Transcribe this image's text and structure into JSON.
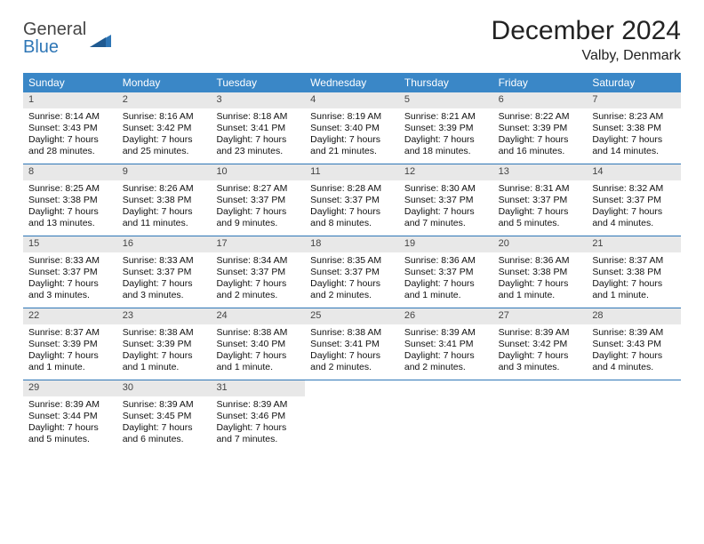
{
  "logo": {
    "word1": "General",
    "word2": "Blue"
  },
  "header": {
    "title": "December 2024",
    "location": "Valby, Denmark"
  },
  "colors": {
    "header_bg": "#3a87c7",
    "header_text": "#ffffff",
    "daynum_bg": "#e8e8e8",
    "daynum_text": "#444444",
    "rule": "#2e76b6",
    "logo_gray": "#444444",
    "logo_blue": "#2e76b6"
  },
  "daysOfWeek": [
    "Sunday",
    "Monday",
    "Tuesday",
    "Wednesday",
    "Thursday",
    "Friday",
    "Saturday"
  ],
  "weeks": [
    [
      {
        "n": "1",
        "sunrise": "Sunrise: 8:14 AM",
        "sunset": "Sunset: 3:43 PM",
        "day1": "Daylight: 7 hours",
        "day2": "and 28 minutes."
      },
      {
        "n": "2",
        "sunrise": "Sunrise: 8:16 AM",
        "sunset": "Sunset: 3:42 PM",
        "day1": "Daylight: 7 hours",
        "day2": "and 25 minutes."
      },
      {
        "n": "3",
        "sunrise": "Sunrise: 8:18 AM",
        "sunset": "Sunset: 3:41 PM",
        "day1": "Daylight: 7 hours",
        "day2": "and 23 minutes."
      },
      {
        "n": "4",
        "sunrise": "Sunrise: 8:19 AM",
        "sunset": "Sunset: 3:40 PM",
        "day1": "Daylight: 7 hours",
        "day2": "and 21 minutes."
      },
      {
        "n": "5",
        "sunrise": "Sunrise: 8:21 AM",
        "sunset": "Sunset: 3:39 PM",
        "day1": "Daylight: 7 hours",
        "day2": "and 18 minutes."
      },
      {
        "n": "6",
        "sunrise": "Sunrise: 8:22 AM",
        "sunset": "Sunset: 3:39 PM",
        "day1": "Daylight: 7 hours",
        "day2": "and 16 minutes."
      },
      {
        "n": "7",
        "sunrise": "Sunrise: 8:23 AM",
        "sunset": "Sunset: 3:38 PM",
        "day1": "Daylight: 7 hours",
        "day2": "and 14 minutes."
      }
    ],
    [
      {
        "n": "8",
        "sunrise": "Sunrise: 8:25 AM",
        "sunset": "Sunset: 3:38 PM",
        "day1": "Daylight: 7 hours",
        "day2": "and 13 minutes."
      },
      {
        "n": "9",
        "sunrise": "Sunrise: 8:26 AM",
        "sunset": "Sunset: 3:38 PM",
        "day1": "Daylight: 7 hours",
        "day2": "and 11 minutes."
      },
      {
        "n": "10",
        "sunrise": "Sunrise: 8:27 AM",
        "sunset": "Sunset: 3:37 PM",
        "day1": "Daylight: 7 hours",
        "day2": "and 9 minutes."
      },
      {
        "n": "11",
        "sunrise": "Sunrise: 8:28 AM",
        "sunset": "Sunset: 3:37 PM",
        "day1": "Daylight: 7 hours",
        "day2": "and 8 minutes."
      },
      {
        "n": "12",
        "sunrise": "Sunrise: 8:30 AM",
        "sunset": "Sunset: 3:37 PM",
        "day1": "Daylight: 7 hours",
        "day2": "and 7 minutes."
      },
      {
        "n": "13",
        "sunrise": "Sunrise: 8:31 AM",
        "sunset": "Sunset: 3:37 PM",
        "day1": "Daylight: 7 hours",
        "day2": "and 5 minutes."
      },
      {
        "n": "14",
        "sunrise": "Sunrise: 8:32 AM",
        "sunset": "Sunset: 3:37 PM",
        "day1": "Daylight: 7 hours",
        "day2": "and 4 minutes."
      }
    ],
    [
      {
        "n": "15",
        "sunrise": "Sunrise: 8:33 AM",
        "sunset": "Sunset: 3:37 PM",
        "day1": "Daylight: 7 hours",
        "day2": "and 3 minutes."
      },
      {
        "n": "16",
        "sunrise": "Sunrise: 8:33 AM",
        "sunset": "Sunset: 3:37 PM",
        "day1": "Daylight: 7 hours",
        "day2": "and 3 minutes."
      },
      {
        "n": "17",
        "sunrise": "Sunrise: 8:34 AM",
        "sunset": "Sunset: 3:37 PM",
        "day1": "Daylight: 7 hours",
        "day2": "and 2 minutes."
      },
      {
        "n": "18",
        "sunrise": "Sunrise: 8:35 AM",
        "sunset": "Sunset: 3:37 PM",
        "day1": "Daylight: 7 hours",
        "day2": "and 2 minutes."
      },
      {
        "n": "19",
        "sunrise": "Sunrise: 8:36 AM",
        "sunset": "Sunset: 3:37 PM",
        "day1": "Daylight: 7 hours",
        "day2": "and 1 minute."
      },
      {
        "n": "20",
        "sunrise": "Sunrise: 8:36 AM",
        "sunset": "Sunset: 3:38 PM",
        "day1": "Daylight: 7 hours",
        "day2": "and 1 minute."
      },
      {
        "n": "21",
        "sunrise": "Sunrise: 8:37 AM",
        "sunset": "Sunset: 3:38 PM",
        "day1": "Daylight: 7 hours",
        "day2": "and 1 minute."
      }
    ],
    [
      {
        "n": "22",
        "sunrise": "Sunrise: 8:37 AM",
        "sunset": "Sunset: 3:39 PM",
        "day1": "Daylight: 7 hours",
        "day2": "and 1 minute."
      },
      {
        "n": "23",
        "sunrise": "Sunrise: 8:38 AM",
        "sunset": "Sunset: 3:39 PM",
        "day1": "Daylight: 7 hours",
        "day2": "and 1 minute."
      },
      {
        "n": "24",
        "sunrise": "Sunrise: 8:38 AM",
        "sunset": "Sunset: 3:40 PM",
        "day1": "Daylight: 7 hours",
        "day2": "and 1 minute."
      },
      {
        "n": "25",
        "sunrise": "Sunrise: 8:38 AM",
        "sunset": "Sunset: 3:41 PM",
        "day1": "Daylight: 7 hours",
        "day2": "and 2 minutes."
      },
      {
        "n": "26",
        "sunrise": "Sunrise: 8:39 AM",
        "sunset": "Sunset: 3:41 PM",
        "day1": "Daylight: 7 hours",
        "day2": "and 2 minutes."
      },
      {
        "n": "27",
        "sunrise": "Sunrise: 8:39 AM",
        "sunset": "Sunset: 3:42 PM",
        "day1": "Daylight: 7 hours",
        "day2": "and 3 minutes."
      },
      {
        "n": "28",
        "sunrise": "Sunrise: 8:39 AM",
        "sunset": "Sunset: 3:43 PM",
        "day1": "Daylight: 7 hours",
        "day2": "and 4 minutes."
      }
    ],
    [
      {
        "n": "29",
        "sunrise": "Sunrise: 8:39 AM",
        "sunset": "Sunset: 3:44 PM",
        "day1": "Daylight: 7 hours",
        "day2": "and 5 minutes."
      },
      {
        "n": "30",
        "sunrise": "Sunrise: 8:39 AM",
        "sunset": "Sunset: 3:45 PM",
        "day1": "Daylight: 7 hours",
        "day2": "and 6 minutes."
      },
      {
        "n": "31",
        "sunrise": "Sunrise: 8:39 AM",
        "sunset": "Sunset: 3:46 PM",
        "day1": "Daylight: 7 hours",
        "day2": "and 7 minutes."
      },
      {
        "empty": true
      },
      {
        "empty": true
      },
      {
        "empty": true
      },
      {
        "empty": true
      }
    ]
  ]
}
